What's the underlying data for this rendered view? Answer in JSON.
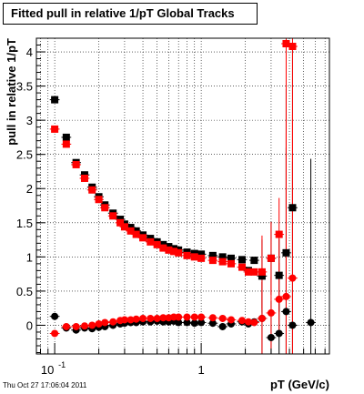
{
  "chart_data": {
    "type": "scatter",
    "title": "Fitted pull in relative 1/pT  Global Tracks",
    "xlabel": "pT (GeV/c)",
    "ylabel": "pull in relative 1/pT",
    "x_scale": "log",
    "xlim": [
      0.075,
      7.5
    ],
    "ylim": [
      -0.42,
      4.2
    ],
    "grid": true,
    "x_tick_labels": [
      {
        "value": 0.1,
        "label": "10^-1"
      },
      {
        "value": 1,
        "label": "1"
      }
    ],
    "y_tick_labels": [
      "0",
      "0.5",
      "1",
      "1.5",
      "2",
      "2.5",
      "3",
      "3.5",
      "4"
    ],
    "y_tick_values": [
      0,
      0.5,
      1,
      1.5,
      2,
      2.5,
      3,
      3.5,
      4
    ],
    "series": [
      {
        "marker": "square",
        "color": "#000000",
        "x": [
          0.1,
          0.12,
          0.14,
          0.16,
          0.18,
          0.2,
          0.22,
          0.25,
          0.28,
          0.3,
          0.33,
          0.36,
          0.4,
          0.45,
          0.5,
          0.55,
          0.6,
          0.65,
          0.7,
          0.8,
          0.9,
          1.0,
          1.2,
          1.4,
          1.6,
          1.9,
          2.1,
          2.3,
          2.6,
          3.0,
          3.4,
          3.8,
          4.2
        ],
        "y": [
          3.3,
          2.75,
          2.38,
          2.2,
          2.02,
          1.88,
          1.76,
          1.64,
          1.55,
          1.48,
          1.43,
          1.38,
          1.32,
          1.27,
          1.22,
          1.18,
          1.15,
          1.12,
          1.1,
          1.07,
          1.05,
          1.04,
          1.02,
          1.0,
          0.98,
          0.96,
          0.8,
          0.95,
          0.72,
          0.98,
          0.73,
          1.06,
          1.72
        ]
      },
      {
        "marker": "square",
        "color": "#ff0000",
        "x": [
          0.1,
          0.12,
          0.14,
          0.16,
          0.18,
          0.2,
          0.22,
          0.25,
          0.28,
          0.3,
          0.33,
          0.36,
          0.4,
          0.45,
          0.5,
          0.55,
          0.6,
          0.65,
          0.7,
          0.8,
          0.9,
          1.0,
          1.2,
          1.4,
          1.6,
          1.9,
          2.1,
          2.3,
          2.6,
          3.0,
          3.4,
          3.8,
          4.2
        ],
        "y": [
          2.87,
          2.65,
          2.35,
          2.15,
          1.98,
          1.84,
          1.72,
          1.6,
          1.5,
          1.44,
          1.38,
          1.33,
          1.28,
          1.22,
          1.18,
          1.13,
          1.1,
          1.08,
          1.06,
          1.02,
          1.0,
          0.98,
          0.95,
          0.93,
          0.9,
          0.85,
          0.78,
          0.78,
          0.78,
          0.98,
          1.33,
          4.12,
          4.08
        ]
      },
      {
        "marker": "circle",
        "color": "#000000",
        "x": [
          0.1,
          0.12,
          0.14,
          0.16,
          0.18,
          0.2,
          0.22,
          0.25,
          0.28,
          0.3,
          0.33,
          0.36,
          0.4,
          0.45,
          0.5,
          0.55,
          0.6,
          0.65,
          0.7,
          0.8,
          0.9,
          1.0,
          1.2,
          1.4,
          1.6,
          1.9,
          2.1,
          2.3,
          2.6,
          3.0,
          3.4,
          3.8,
          4.2,
          5.6
        ],
        "y": [
          0.13,
          -0.04,
          -0.07,
          -0.04,
          -0.05,
          -0.03,
          -0.02,
          0.0,
          0.02,
          0.03,
          0.04,
          0.04,
          0.05,
          0.05,
          0.06,
          0.05,
          0.05,
          0.06,
          0.04,
          0.04,
          0.03,
          0.04,
          0.03,
          -0.02,
          0.02,
          0.05,
          0.02,
          0.05,
          0.1,
          -0.18,
          -0.12,
          0.2,
          0.0,
          0.04
        ]
      },
      {
        "marker": "circle",
        "color": "#ff0000",
        "x": [
          0.1,
          0.12,
          0.14,
          0.16,
          0.18,
          0.2,
          0.22,
          0.25,
          0.28,
          0.3,
          0.33,
          0.36,
          0.4,
          0.45,
          0.5,
          0.55,
          0.6,
          0.65,
          0.7,
          0.8,
          0.9,
          1.0,
          1.2,
          1.4,
          1.6,
          1.9,
          2.1,
          2.3,
          2.6,
          3.0,
          3.4,
          3.8,
          4.2
        ],
        "y": [
          -0.12,
          -0.02,
          -0.02,
          -0.01,
          0.0,
          0.02,
          0.04,
          0.05,
          0.07,
          0.08,
          0.08,
          0.09,
          0.1,
          0.1,
          0.1,
          0.11,
          0.11,
          0.12,
          0.12,
          0.12,
          0.12,
          0.12,
          0.11,
          0.1,
          0.08,
          0.07,
          0.05,
          0.04,
          0.1,
          0.18,
          0.38,
          0.42,
          0.69
        ]
      }
    ]
  },
  "footer": "Thu Oct 27 17:06:04 2011"
}
